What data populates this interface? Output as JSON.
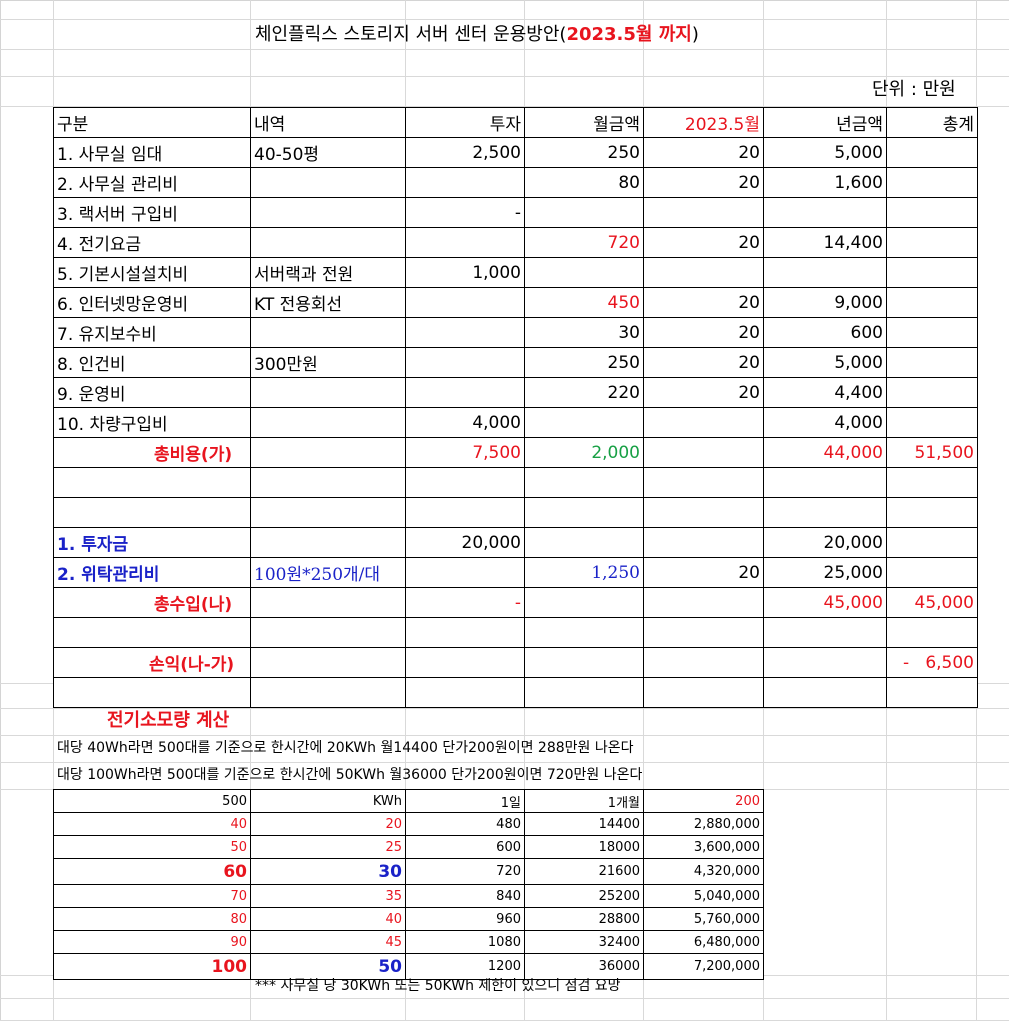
{
  "title": {
    "prefix": "체인플릭스 스토리지 서버 센터 운용방안(",
    "highlight": "2023.5월 까지",
    "suffix": ")"
  },
  "unit": "단위 : 만원",
  "main_table": {
    "headers": [
      "구분",
      "내역",
      "투자",
      "월금액",
      "2023.5월",
      "년금액",
      "총계"
    ],
    "rows": [
      [
        "1. 사무실 임대",
        "40-50평",
        "2,500",
        "250",
        "20",
        "5,000",
        ""
      ],
      [
        "2. 사무실 관리비",
        "",
        "",
        "80",
        "20",
        "1,600",
        ""
      ],
      [
        "3. 랙서버 구입비",
        "",
        "-",
        "",
        "",
        "",
        ""
      ],
      [
        "4. 전기요금",
        "",
        "",
        "720",
        "20",
        "14,400",
        ""
      ],
      [
        "5. 기본시설설치비",
        "서버랙과 전원",
        "1,000",
        "",
        "",
        "",
        ""
      ],
      [
        "6. 인터넷망운영비",
        "KT 전용회선",
        "",
        "450",
        "20",
        "9,000",
        ""
      ],
      [
        "7. 유지보수비",
        "",
        "",
        "30",
        "20",
        "600",
        ""
      ],
      [
        "8. 인건비",
        "300만원",
        "",
        "250",
        "20",
        "5,000",
        ""
      ],
      [
        "9. 운영비",
        "",
        "",
        "220",
        "20",
        "4,400",
        ""
      ],
      [
        "10. 차량구입비",
        "",
        "4,000",
        "",
        "",
        "4,000",
        ""
      ]
    ],
    "total_cost": [
      "총비용(가)",
      "",
      "7,500",
      "2,000",
      "",
      "44,000",
      "51,500"
    ],
    "income_rows": [
      [
        "1. 투자금",
        "",
        "20,000",
        "",
        "",
        "20,000",
        ""
      ],
      [
        "2. 위탁관리비",
        "100원*250개/대",
        "",
        "1,250",
        "20",
        "25,000",
        ""
      ]
    ],
    "total_income": [
      "총수입(나)",
      "",
      "-",
      "",
      "",
      "45,000",
      "45,000"
    ],
    "profit": [
      "손익(나-가)",
      "",
      "",
      "",
      "",
      "",
      "-   6,500"
    ]
  },
  "power": {
    "heading": "전기소모량 계산",
    "line1": "대당 40Wh라면 500대를 기준으로 한시간에 20KWh 월14400 단가200원이면 288만원 나온다",
    "line2": "대당 100Wh라면 500대를 기준으로 한시간에 50KWh 월36000 단가200원이면 720만원 나온다",
    "headers": [
      "500",
      "KWh",
      "1일",
      "1개월",
      "200"
    ],
    "rows": [
      [
        "40",
        "20",
        "480",
        "14400",
        "2,880,000"
      ],
      [
        "50",
        "25",
        "600",
        "18000",
        "3,600,000"
      ],
      [
        "60",
        "30",
        "720",
        "21600",
        "4,320,000"
      ],
      [
        "70",
        "35",
        "840",
        "25200",
        "5,040,000"
      ],
      [
        "80",
        "40",
        "960",
        "28800",
        "5,760,000"
      ],
      [
        "90",
        "45",
        "1080",
        "32400",
        "6,480,000"
      ],
      [
        "100",
        "50",
        "1200",
        "36000",
        "7,200,000"
      ]
    ],
    "note": "*** 사무실 당 30KWh 또는 50KWh 제한이 있으니 점검 요망"
  }
}
